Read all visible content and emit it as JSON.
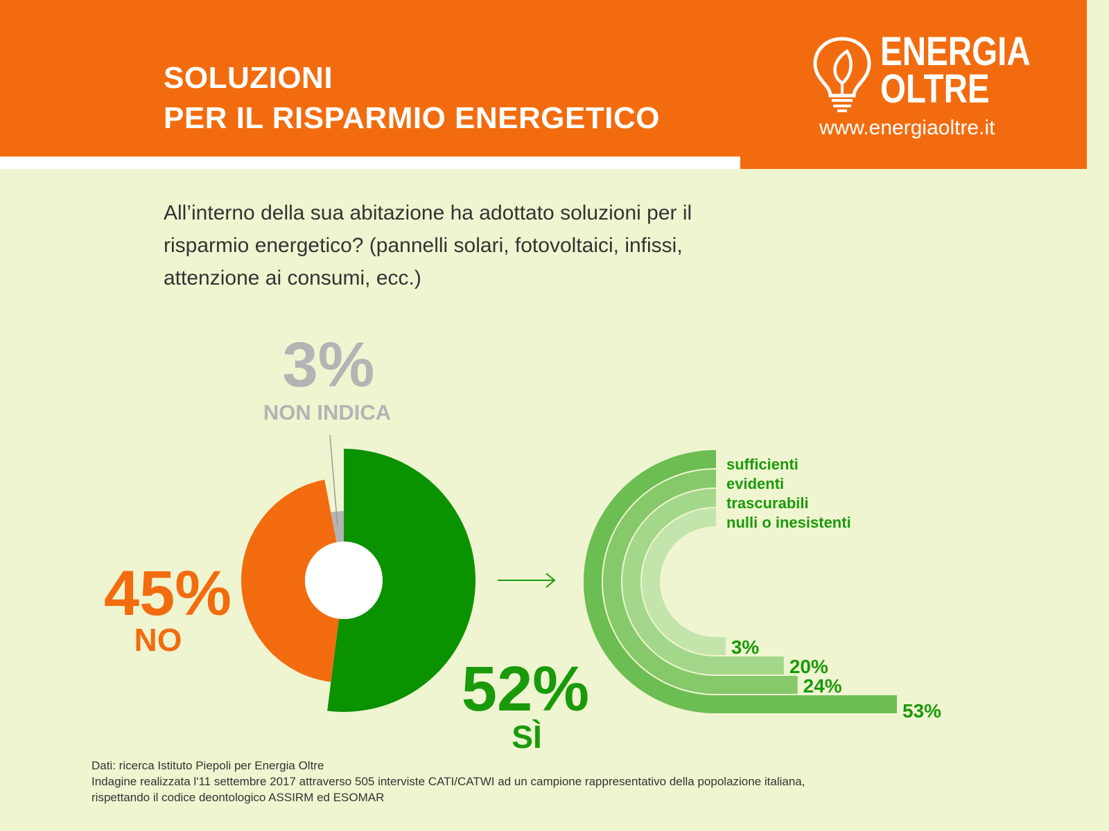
{
  "header": {
    "title_line1": "SOLUZIONI",
    "title_line2": "PER IL RISPARMIO ENERGETICO",
    "logo_line1": "ENERGIA",
    "logo_line2": "OLTRE",
    "url": "www.energiaoltre.it"
  },
  "question": "All’interno della sua abitazione ha adottato soluzioni per il risparmio energetico? (pannelli solari, fotovoltaici, infissi, attenzione ai consumi, ecc.)",
  "colors": {
    "orange": "#f26c0f",
    "green": "#0b9200",
    "grey": "#b4b4b4",
    "text_green": "#1a9a0a",
    "arc_colors": [
      "#6cbd52",
      "#85c96a",
      "#a3d78a",
      "#c3e4ab"
    ]
  },
  "chart_data": [
    {
      "type": "pie",
      "labels": [
        "SÌ",
        "NO",
        "NON INDICA"
      ],
      "values": [
        52,
        45,
        3
      ],
      "value_labels": [
        "52%",
        "45%",
        "3%"
      ]
    },
    {
      "type": "bar",
      "categories": [
        "sufficienti",
        "evidenti",
        "trascurabili",
        "nulli o inesistenti"
      ],
      "values": [
        53,
        24,
        20,
        3
      ],
      "value_labels": [
        "53%",
        "24%",
        "20%",
        "3%"
      ]
    }
  ],
  "footer": {
    "line1": "Dati: ricerca Istituto Piepoli per Energia Oltre",
    "line2": "Indagine realizzata l'11 settembre 2017 attraverso 505 interviste CATI/CATWI ad un campione rappresentativo della popolazione italiana,",
    "line3": "rispettando il codice deontologico ASSIRM ed ESOMAR"
  }
}
